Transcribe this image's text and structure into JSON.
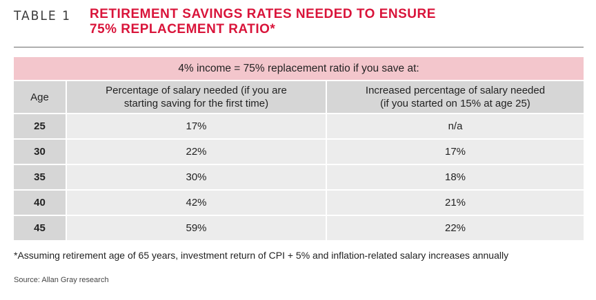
{
  "header": {
    "table_label": "TABLE 1",
    "title_line1": "RETIREMENT SAVINGS RATES NEEDED TO ENSURE",
    "title_line2": "75% REPLACEMENT RATIO*"
  },
  "table": {
    "banner": "4% income = 75% replacement ratio if you save at:",
    "headers": {
      "age": "Age",
      "col1_line1": "Percentage of salary needed (if you are",
      "col1_line2": "starting saving for the first time)",
      "col2_line1": "Increased percentage of salary needed",
      "col2_line2": "(if you started on 15% at age 25)"
    },
    "rows": [
      {
        "age": "25",
        "col1": "17%",
        "col2": "n/a"
      },
      {
        "age": "30",
        "col1": "22%",
        "col2": "17%"
      },
      {
        "age": "35",
        "col1": "30%",
        "col2": "18%"
      },
      {
        "age": "40",
        "col1": "42%",
        "col2": "21%"
      },
      {
        "age": "45",
        "col1": "59%",
        "col2": "22%"
      }
    ]
  },
  "footnote": "*Assuming retirement age of 65 years, investment return of CPI + 5% and inflation-related salary increases annually",
  "source": "Source: Allan Gray research",
  "colors": {
    "title": "#d9143a",
    "banner": "#f3c6cc",
    "header_gray": "#d6d6d6",
    "cell_gray": "#ececec"
  }
}
